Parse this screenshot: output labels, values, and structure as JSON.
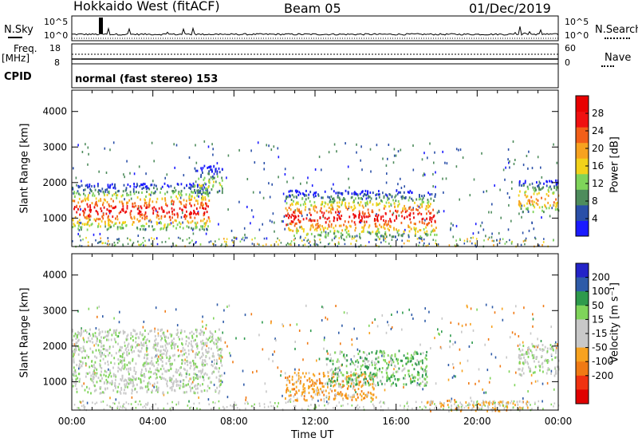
{
  "header": {
    "station": "Hokkaido West (fitACF)",
    "beam": "Beam 05",
    "date": "01/Dec/2019"
  },
  "strip": {
    "nsky_label": "N.Sky",
    "nsky_ticks": [
      "10^5",
      "10^0"
    ],
    "nsearch_label": "N.Search",
    "freq_label_line1": "Freq.",
    "freq_label_line2": "[MHz]",
    "freq_ticks": [
      "18",
      "8"
    ],
    "nave_ticks": [
      "60",
      "0"
    ],
    "nave_label": "Nave",
    "cpid_label": "CPID",
    "cpid_text": "normal (fast stereo) 153"
  },
  "colors": {
    "power": [
      "#1a1aff",
      "#2a4fa8",
      "#4e8c5c",
      "#7fd45a",
      "#f2d21a",
      "#f7a21f",
      "#f25f18",
      "#f01010",
      "#e80000"
    ],
    "velocity": [
      "#2323c8",
      "#2e5ba8",
      "#2e9a4c",
      "#7fd45a",
      "#c8c8c8",
      "#c8c8c8",
      "#f7a21f",
      "#f07a14",
      "#f03210",
      "#e00000"
    ]
  },
  "chart_data": [
    {
      "type": "heatmap",
      "title": "",
      "xlabel": "",
      "ylabel": "Slant Range [km]",
      "x_ticks": [
        "00:00",
        "04:00",
        "08:00",
        "12:00",
        "16:00",
        "20:00",
        "00:00"
      ],
      "y_ticks": [
        "1000",
        "2000",
        "3000",
        "4000"
      ],
      "ylim": [
        200,
        4600
      ],
      "xlim_hours": [
        0,
        24
      ],
      "colorbar_label": "Power [dB]",
      "colorbar_ticks": [
        "4",
        "8",
        "12",
        "16",
        "20",
        "24",
        "28"
      ],
      "colorbar_range": [
        0,
        30
      ],
      "echo_regions": [
        {
          "t_start": 0.0,
          "t_end": 6.8,
          "range_min": 700,
          "range_max": 2000,
          "peak_range": 1250,
          "peak_power": 28
        },
        {
          "t_start": 6.0,
          "t_end": 7.4,
          "range_min": 1700,
          "range_max": 2500,
          "peak_range": 2000,
          "peak_power": 14
        },
        {
          "t_start": 10.5,
          "t_end": 18.0,
          "range_min": 500,
          "range_max": 1800,
          "peak_range": 1050,
          "peak_power": 28
        },
        {
          "t_start": 22.0,
          "t_end": 24.0,
          "range_min": 1200,
          "range_max": 2100,
          "peak_range": 1550,
          "peak_power": 22
        }
      ]
    },
    {
      "type": "heatmap",
      "title": "",
      "xlabel": "Time UT",
      "ylabel": "Slant Range [km]",
      "x_ticks": [
        "00:00",
        "04:00",
        "08:00",
        "12:00",
        "16:00",
        "20:00",
        "00:00"
      ],
      "y_ticks": [
        "1000",
        "2000",
        "3000",
        "4000"
      ],
      "ylim": [
        200,
        4600
      ],
      "xlim_hours": [
        0,
        24
      ],
      "colorbar_label": "Velocity [m s⁻¹]",
      "colorbar_ticks": [
        "200",
        "100",
        "50",
        "15",
        "-15",
        "-50",
        "-100",
        "-200"
      ],
      "colorbar_range": [
        -250,
        250
      ],
      "echo_regions": [
        {
          "t_start": 0.0,
          "t_end": 7.4,
          "range_min": 700,
          "range_max": 2500,
          "velocity": 0
        },
        {
          "t_start": 10.5,
          "t_end": 15.0,
          "range_min": 500,
          "range_max": 1300,
          "velocity": -80
        },
        {
          "t_start": 12.5,
          "t_end": 17.5,
          "range_min": 900,
          "range_max": 1900,
          "velocity": 40
        },
        {
          "t_start": 17.5,
          "t_end": 22.5,
          "range_min": 200,
          "range_max": 500,
          "velocity": -60
        },
        {
          "t_start": 22.0,
          "t_end": 24.0,
          "range_min": 1200,
          "range_max": 2100,
          "velocity": 0
        }
      ]
    }
  ]
}
